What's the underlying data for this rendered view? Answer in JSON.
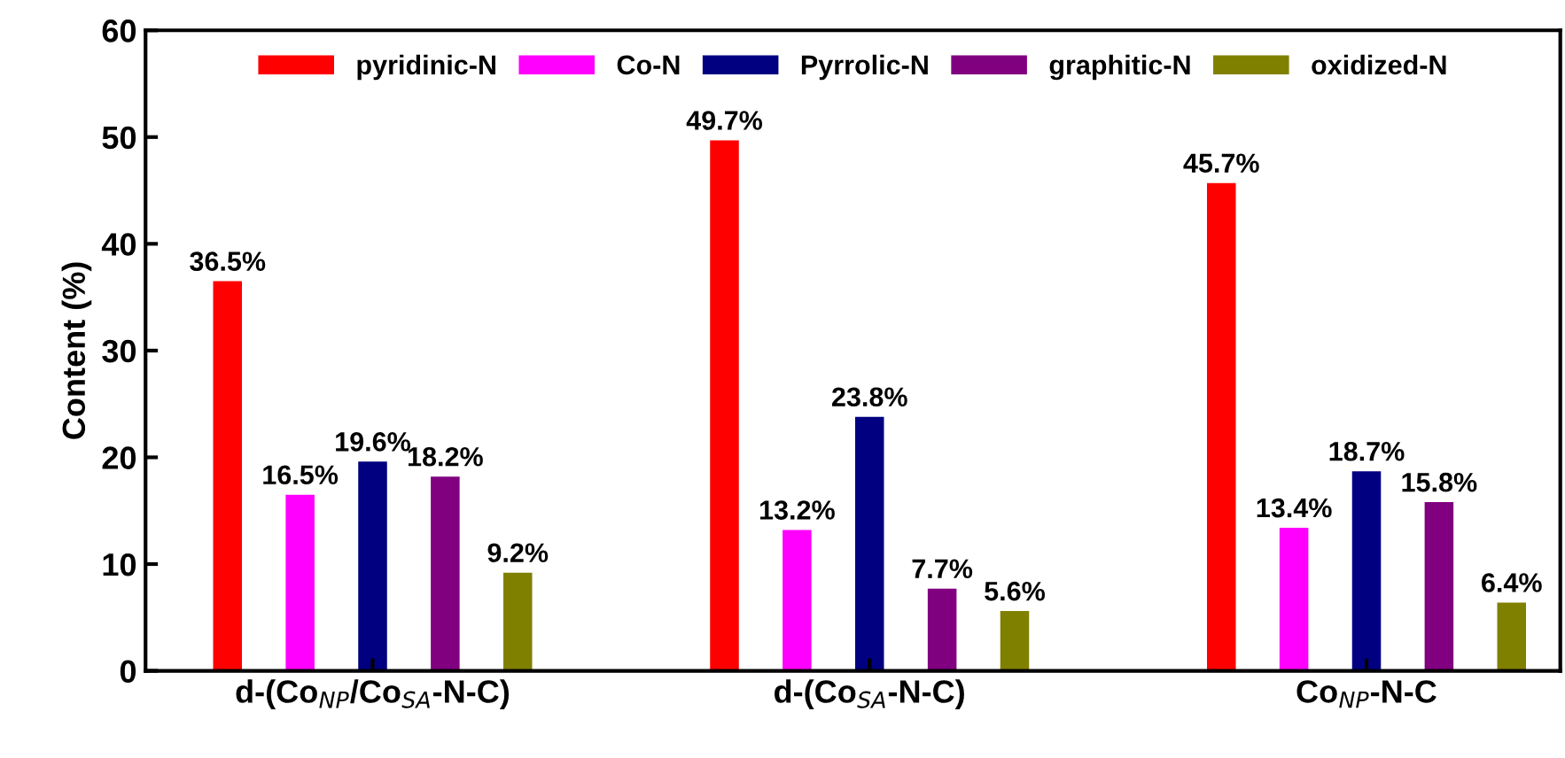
{
  "chart_data": {
    "type": "bar",
    "ylabel": "Content (%)",
    "categories": [
      "d-(Co$_{NP}$/Co$_{SA}$-N-C)",
      "d-(Co$_{SA}$-N-C)",
      "Co$_{NP}$-N-C"
    ],
    "series": [
      {
        "name": "pyridinic-N",
        "color": "#ff0000",
        "values": [
          36.5,
          49.7,
          45.7
        ],
        "value_labels": [
          "36.5%",
          "49.7%",
          "45.7%"
        ]
      },
      {
        "name": "Co-N",
        "color": "#ff00ff",
        "values": [
          16.5,
          13.2,
          13.4
        ],
        "value_labels": [
          "16.5%",
          "13.2%",
          "13.4%"
        ]
      },
      {
        "name": "Pyrrolic-N",
        "color": "#000080",
        "values": [
          19.6,
          23.8,
          18.7
        ],
        "value_labels": [
          "19.6%",
          "23.8%",
          "18.7%"
        ]
      },
      {
        "name": "graphitic-N",
        "color": "#800080",
        "values": [
          18.2,
          7.7,
          15.8
        ],
        "value_labels": [
          "18.2%",
          "7.7%",
          "15.8%"
        ]
      },
      {
        "name": "oxidized-N",
        "color": "#808000",
        "values": [
          9.2,
          5.6,
          6.4
        ],
        "value_labels": [
          "9.2%",
          "5.6%",
          "6.4%"
        ]
      }
    ],
    "ylim": [
      0,
      60
    ],
    "yticks": [
      0,
      10,
      20,
      30,
      40,
      50,
      60
    ],
    "legend": "top",
    "grid": false
  }
}
